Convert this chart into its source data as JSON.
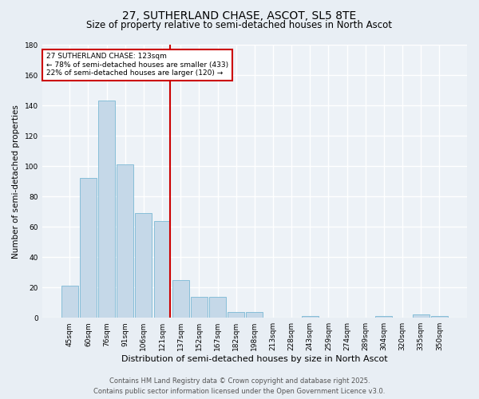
{
  "title": "27, SUTHERLAND CHASE, ASCOT, SL5 8TE",
  "subtitle": "Size of property relative to semi-detached houses in North Ascot",
  "xlabel": "Distribution of semi-detached houses by size in North Ascot",
  "ylabel": "Number of semi-detached properties",
  "categories": [
    "45sqm",
    "60sqm",
    "76sqm",
    "91sqm",
    "106sqm",
    "121sqm",
    "137sqm",
    "152sqm",
    "167sqm",
    "182sqm",
    "198sqm",
    "213sqm",
    "228sqm",
    "243sqm",
    "259sqm",
    "274sqm",
    "289sqm",
    "304sqm",
    "320sqm",
    "335sqm",
    "350sqm"
  ],
  "values": [
    21,
    92,
    143,
    101,
    69,
    64,
    25,
    14,
    14,
    4,
    4,
    0,
    0,
    1,
    0,
    0,
    0,
    1,
    0,
    2,
    1
  ],
  "bar_color": "#c5d8e8",
  "bar_edge_color": "#7ab8d4",
  "vline_bin_index": 5,
  "annotation_title": "27 SUTHERLAND CHASE: 123sqm",
  "annotation_line1": "← 78% of semi-detached houses are smaller (433)",
  "annotation_line2": "22% of semi-detached houses are larger (120) →",
  "vline_color": "#cc0000",
  "annotation_box_edgecolor": "#cc0000",
  "ylim": [
    0,
    180
  ],
  "yticks": [
    0,
    20,
    40,
    60,
    80,
    100,
    120,
    140,
    160,
    180
  ],
  "footer_line1": "Contains HM Land Registry data © Crown copyright and database right 2025.",
  "footer_line2": "Contains public sector information licensed under the Open Government Licence v3.0.",
  "bg_color": "#e8eef4",
  "plot_bg_color": "#edf2f7",
  "grid_color": "#ffffff",
  "title_fontsize": 10,
  "subtitle_fontsize": 8.5,
  "ylabel_fontsize": 7.5,
  "xlabel_fontsize": 8,
  "tick_fontsize": 6.5,
  "annotation_fontsize": 6.5,
  "footer_fontsize": 6
}
